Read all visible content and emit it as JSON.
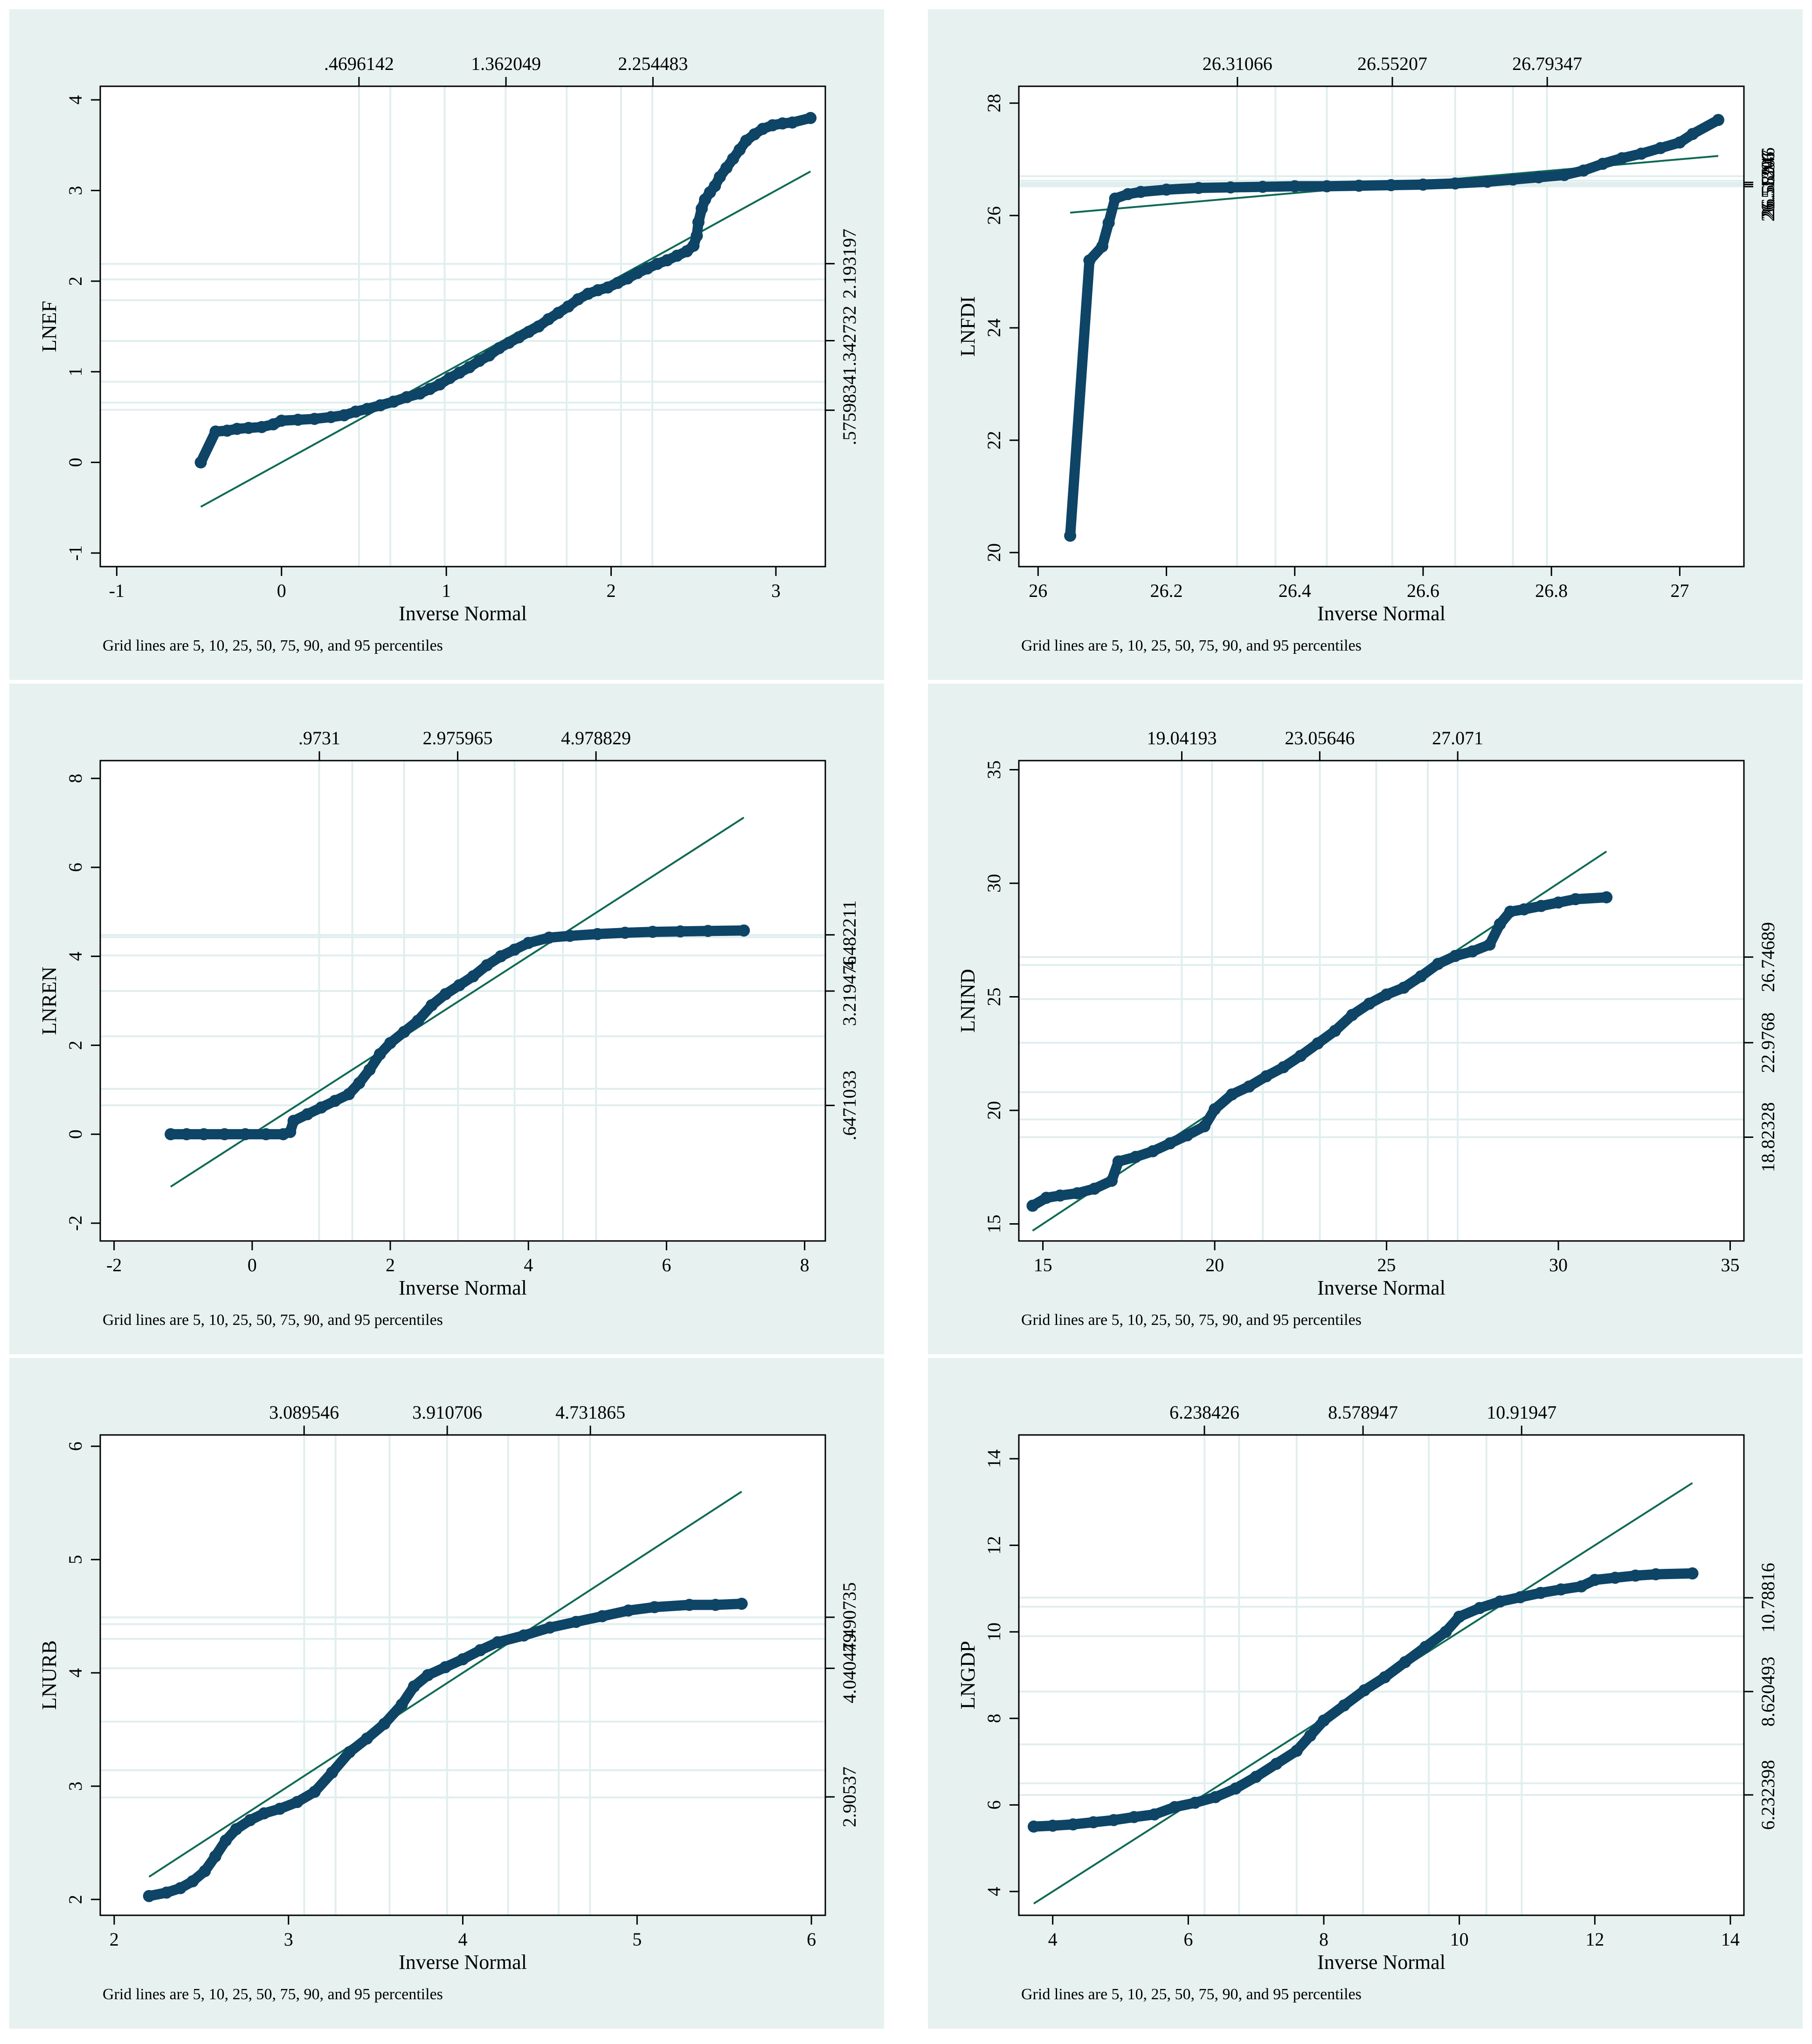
{
  "figure": {
    "panel_background": "#e6f1f0",
    "plot_background": "#ffffff",
    "gridline_color": "#e0eeee",
    "marker_color": "#0e4466",
    "fit_line_color": "#0e6a55"
  },
  "chart_data": [
    {
      "type": "scatter",
      "title": "",
      "xlabel": "Inverse Normal",
      "ylabel": "LNEF",
      "note": "Grid lines are 5, 10, 25, 50, 75, 90, and 95 percentiles",
      "xlim": [
        -1.1,
        3.3
      ],
      "ylim": [
        -1.15,
        4.15
      ],
      "x_ticks": [
        "-1",
        "0",
        "1",
        "2",
        "3"
      ],
      "y_ticks": [
        "-1",
        "0",
        "1",
        "2",
        "3",
        "4"
      ],
      "top_tick_labels": [
        ".4696142",
        "1.362049",
        "2.254483"
      ],
      "right_tick_labels": [
        ".5759834",
        "1.342732",
        "2.193197"
      ],
      "vgrid": [
        0.47,
        0.66,
        0.99,
        1.36,
        1.73,
        2.06,
        2.25
      ],
      "hgrid": [
        0.58,
        0.66,
        0.89,
        1.34,
        1.79,
        2.02,
        2.19
      ],
      "top_ticks": [
        0.47,
        1.362,
        2.254
      ],
      "right_ticks": [
        0.576,
        1.343,
        2.193
      ],
      "fit_line": {
        "x": [
          -0.49,
          3.21
        ],
        "y": [
          -0.49,
          3.21
        ]
      },
      "points": [
        [
          -0.49,
          0.0
        ],
        [
          -0.4,
          0.34
        ],
        [
          -0.33,
          0.35
        ],
        [
          -0.27,
          0.37
        ],
        [
          -0.2,
          0.38
        ],
        [
          -0.12,
          0.39
        ],
        [
          -0.05,
          0.42
        ],
        [
          0.0,
          0.46
        ],
        [
          0.1,
          0.47
        ],
        [
          0.2,
          0.48
        ],
        [
          0.3,
          0.5
        ],
        [
          0.38,
          0.52
        ],
        [
          0.45,
          0.56
        ],
        [
          0.52,
          0.59
        ],
        [
          0.6,
          0.63
        ],
        [
          0.68,
          0.67
        ],
        [
          0.76,
          0.72
        ],
        [
          0.84,
          0.76
        ],
        [
          0.9,
          0.81
        ],
        [
          0.96,
          0.86
        ],
        [
          1.02,
          0.93
        ],
        [
          1.08,
          0.99
        ],
        [
          1.14,
          1.05
        ],
        [
          1.2,
          1.12
        ],
        [
          1.26,
          1.18
        ],
        [
          1.32,
          1.26
        ],
        [
          1.38,
          1.32
        ],
        [
          1.44,
          1.38
        ],
        [
          1.5,
          1.44
        ],
        [
          1.56,
          1.5
        ],
        [
          1.62,
          1.58
        ],
        [
          1.68,
          1.65
        ],
        [
          1.74,
          1.72
        ],
        [
          1.8,
          1.8
        ],
        [
          1.86,
          1.86
        ],
        [
          1.92,
          1.9
        ],
        [
          1.98,
          1.93
        ],
        [
          2.04,
          1.98
        ],
        [
          2.1,
          2.03
        ],
        [
          2.16,
          2.09
        ],
        [
          2.22,
          2.14
        ],
        [
          2.28,
          2.19
        ],
        [
          2.34,
          2.23
        ],
        [
          2.4,
          2.28
        ],
        [
          2.46,
          2.33
        ],
        [
          2.5,
          2.39
        ],
        [
          2.52,
          2.5
        ],
        [
          2.53,
          2.65
        ],
        [
          2.55,
          2.8
        ],
        [
          2.57,
          2.9
        ],
        [
          2.6,
          2.98
        ],
        [
          2.63,
          3.05
        ],
        [
          2.66,
          3.15
        ],
        [
          2.7,
          3.25
        ],
        [
          2.74,
          3.35
        ],
        [
          2.78,
          3.45
        ],
        [
          2.82,
          3.55
        ],
        [
          2.87,
          3.62
        ],
        [
          2.92,
          3.68
        ],
        [
          2.98,
          3.72
        ],
        [
          3.04,
          3.74
        ],
        [
          3.1,
          3.75
        ],
        [
          3.21,
          3.8
        ]
      ]
    },
    {
      "type": "scatter",
      "title": "",
      "xlabel": "Inverse Normal",
      "ylabel": "LNFDI",
      "note": "Grid lines are 5, 10, 25, 50, 75, 90, and 95 percentiles",
      "xlim": [
        25.97,
        27.1
      ],
      "ylim": [
        19.75,
        28.3
      ],
      "x_ticks": [
        "26",
        "26.2",
        "26.4",
        "26.6",
        "26.8",
        "27"
      ],
      "y_ticks": [
        "20",
        "22",
        "24",
        "26",
        "28"
      ],
      "top_tick_labels": [
        "26.31066",
        "26.55207",
        "26.79347"
      ],
      "right_tick_labels": [
        "26.51396",
        "26.55207",
        "26.58946"
      ],
      "vgrid": [
        26.31,
        26.37,
        26.45,
        26.552,
        26.65,
        26.74,
        26.793
      ],
      "hgrid": [
        26.52,
        26.54,
        26.55,
        26.56,
        26.58,
        26.62,
        26.7
      ],
      "top_ticks": [
        26.31066,
        26.55207,
        26.79347
      ],
      "right_ticks": [
        26.514,
        26.552,
        26.589
      ],
      "fit_line": {
        "x": [
          26.05,
          27.06
        ],
        "y": [
          26.05,
          27.06
        ]
      },
      "points": [
        [
          26.05,
          20.3
        ],
        [
          26.08,
          25.2
        ],
        [
          26.1,
          25.45
        ],
        [
          26.11,
          25.87
        ],
        [
          26.12,
          26.3
        ],
        [
          26.14,
          26.38
        ],
        [
          26.16,
          26.42
        ],
        [
          26.2,
          26.46
        ],
        [
          26.25,
          26.49
        ],
        [
          26.3,
          26.5
        ],
        [
          26.35,
          26.51
        ],
        [
          26.4,
          26.52
        ],
        [
          26.45,
          26.52
        ],
        [
          26.5,
          26.53
        ],
        [
          26.55,
          26.54
        ],
        [
          26.6,
          26.55
        ],
        [
          26.65,
          26.57
        ],
        [
          26.7,
          26.6
        ],
        [
          26.74,
          26.64
        ],
        [
          26.78,
          26.68
        ],
        [
          26.82,
          26.72
        ],
        [
          26.85,
          26.8
        ],
        [
          26.88,
          26.92
        ],
        [
          26.91,
          27.02
        ],
        [
          26.94,
          27.1
        ],
        [
          26.97,
          27.2
        ],
        [
          27.0,
          27.3
        ],
        [
          27.02,
          27.45
        ],
        [
          27.06,
          27.7
        ]
      ]
    },
    {
      "type": "scatter",
      "title": "",
      "xlabel": "Inverse Normal",
      "ylabel": "LNREN",
      "note": "Grid lines are 5, 10, 25, 50, 75, 90, and 95 percentiles",
      "xlim": [
        -2.2,
        8.3
      ],
      "ylim": [
        -2.4,
        8.4
      ],
      "x_ticks": [
        "-2",
        "0",
        "2",
        "4",
        "6",
        "8"
      ],
      "y_ticks": [
        "-2",
        "0",
        "2",
        "4",
        "6",
        "8"
      ],
      "top_tick_labels": [
        ".9731",
        "2.975965",
        "4.978829"
      ],
      "right_tick_labels": [
        ".6471033",
        "3.219476",
        "4.482211"
      ],
      "vgrid": [
        0.97,
        1.45,
        2.2,
        2.98,
        3.8,
        4.5,
        4.98
      ],
      "hgrid": [
        0.65,
        1.02,
        2.2,
        3.22,
        4.02,
        4.43,
        4.48
      ],
      "top_ticks": [
        0.9731,
        2.975965,
        4.978829
      ],
      "right_ticks": [
        0.647,
        3.219,
        4.482
      ],
      "fit_line": {
        "x": [
          -1.18,
          7.12
        ],
        "y": [
          -1.18,
          7.12
        ]
      },
      "points": [
        [
          -1.18,
          0.0
        ],
        [
          -0.95,
          0.0
        ],
        [
          -0.7,
          0.0
        ],
        [
          -0.4,
          0.0
        ],
        [
          -0.1,
          0.0
        ],
        [
          0.2,
          0.0
        ],
        [
          0.45,
          0.0
        ],
        [
          0.55,
          0.05
        ],
        [
          0.6,
          0.3
        ],
        [
          0.8,
          0.45
        ],
        [
          1.0,
          0.6
        ],
        [
          1.2,
          0.75
        ],
        [
          1.4,
          0.9
        ],
        [
          1.55,
          1.15
        ],
        [
          1.7,
          1.45
        ],
        [
          1.85,
          1.8
        ],
        [
          2.0,
          2.05
        ],
        [
          2.2,
          2.3
        ],
        [
          2.4,
          2.55
        ],
        [
          2.6,
          2.9
        ],
        [
          2.8,
          3.15
        ],
        [
          3.0,
          3.35
        ],
        [
          3.2,
          3.55
        ],
        [
          3.4,
          3.8
        ],
        [
          3.6,
          4.0
        ],
        [
          3.8,
          4.15
        ],
        [
          4.0,
          4.3
        ],
        [
          4.3,
          4.42
        ],
        [
          4.6,
          4.46
        ],
        [
          5.0,
          4.5
        ],
        [
          5.4,
          4.53
        ],
        [
          5.8,
          4.55
        ],
        [
          6.2,
          4.56
        ],
        [
          6.6,
          4.57
        ],
        [
          7.12,
          4.58
        ]
      ]
    },
    {
      "type": "scatter",
      "title": "",
      "xlabel": "Inverse Normal",
      "ylabel": "LNIND",
      "note": "Grid lines are 5, 10, 25, 50, 75, 90, and 95 percentiles",
      "xlim": [
        14.3,
        35.4
      ],
      "ylim": [
        14.25,
        35.4
      ],
      "x_ticks": [
        "15",
        "20",
        "25",
        "30",
        "35"
      ],
      "y_ticks": [
        "15",
        "20",
        "25",
        "30",
        "35"
      ],
      "top_tick_labels": [
        "19.04193",
        "23.05646",
        "27.071"
      ],
      "right_tick_labels": [
        "18.82328",
        "22.9768",
        "26.74689"
      ],
      "vgrid": [
        19.04,
        19.92,
        21.4,
        23.06,
        24.7,
        26.2,
        27.07
      ],
      "hgrid": [
        18.82,
        19.6,
        20.8,
        22.98,
        24.9,
        26.4,
        26.75
      ],
      "top_ticks": [
        19.04193,
        23.05646,
        27.071
      ],
      "right_ticks": [
        18.82,
        22.98,
        26.75
      ],
      "fit_line": {
        "x": [
          14.7,
          31.4
        ],
        "y": [
          14.7,
          31.4
        ]
      },
      "points": [
        [
          14.7,
          15.8
        ],
        [
          15.1,
          16.15
        ],
        [
          15.5,
          16.25
        ],
        [
          16.0,
          16.35
        ],
        [
          16.5,
          16.55
        ],
        [
          17.0,
          16.9
        ],
        [
          17.2,
          17.75
        ],
        [
          17.7,
          17.95
        ],
        [
          18.2,
          18.2
        ],
        [
          18.7,
          18.55
        ],
        [
          19.2,
          18.9
        ],
        [
          19.7,
          19.3
        ],
        [
          20.0,
          20.05
        ],
        [
          20.5,
          20.7
        ],
        [
          21.0,
          21.05
        ],
        [
          21.5,
          21.5
        ],
        [
          22.0,
          21.9
        ],
        [
          22.5,
          22.4
        ],
        [
          23.0,
          22.95
        ],
        [
          23.5,
          23.5
        ],
        [
          24.0,
          24.2
        ],
        [
          24.5,
          24.7
        ],
        [
          25.0,
          25.1
        ],
        [
          25.5,
          25.4
        ],
        [
          26.0,
          25.9
        ],
        [
          26.5,
          26.45
        ],
        [
          27.0,
          26.8
        ],
        [
          27.5,
          27.0
        ],
        [
          28.0,
          27.3
        ],
        [
          28.3,
          28.2
        ],
        [
          28.6,
          28.75
        ],
        [
          29.0,
          28.85
        ],
        [
          29.5,
          29.0
        ],
        [
          30.0,
          29.15
        ],
        [
          30.5,
          29.3
        ],
        [
          31.4,
          29.38
        ]
      ]
    },
    {
      "type": "scatter",
      "title": "",
      "xlabel": "Inverse Normal",
      "ylabel": "LNURB",
      "note": "Grid lines are 5, 10, 25, 50, 75, 90, and 95 percentiles",
      "xlim": [
        1.92,
        6.08
      ],
      "ylim": [
        1.86,
        6.1
      ],
      "x_ticks": [
        "2",
        "3",
        "4",
        "5",
        "6"
      ],
      "y_ticks": [
        "2",
        "3",
        "4",
        "5",
        "6"
      ],
      "top_tick_labels": [
        "3.089546",
        "3.910706",
        "4.731865"
      ],
      "right_tick_labels": [
        "2.90537",
        "4.040479",
        "4.490735"
      ],
      "vgrid": [
        3.09,
        3.27,
        3.58,
        3.91,
        4.26,
        4.55,
        4.73
      ],
      "hgrid": [
        2.9,
        3.14,
        3.57,
        4.04,
        4.3,
        4.43,
        4.49
      ],
      "top_ticks": [
        3.089546,
        3.910706,
        4.731865
      ],
      "right_ticks": [
        2.905,
        4.04,
        4.491
      ],
      "fit_line": {
        "x": [
          2.2,
          5.6
        ],
        "y": [
          2.2,
          5.6
        ]
      },
      "points": [
        [
          2.2,
          2.03
        ],
        [
          2.3,
          2.06
        ],
        [
          2.38,
          2.1
        ],
        [
          2.45,
          2.16
        ],
        [
          2.52,
          2.25
        ],
        [
          2.58,
          2.38
        ],
        [
          2.64,
          2.52
        ],
        [
          2.7,
          2.62
        ],
        [
          2.78,
          2.7
        ],
        [
          2.86,
          2.76
        ],
        [
          2.95,
          2.8
        ],
        [
          3.05,
          2.86
        ],
        [
          3.15,
          2.95
        ],
        [
          3.25,
          3.12
        ],
        [
          3.35,
          3.3
        ],
        [
          3.45,
          3.42
        ],
        [
          3.55,
          3.55
        ],
        [
          3.65,
          3.72
        ],
        [
          3.72,
          3.88
        ],
        [
          3.8,
          3.98
        ],
        [
          3.9,
          4.05
        ],
        [
          4.0,
          4.12
        ],
        [
          4.1,
          4.2
        ],
        [
          4.2,
          4.27
        ],
        [
          4.35,
          4.33
        ],
        [
          4.5,
          4.4
        ],
        [
          4.65,
          4.45
        ],
        [
          4.8,
          4.5
        ],
        [
          4.95,
          4.55
        ],
        [
          5.1,
          4.58
        ],
        [
          5.3,
          4.6
        ],
        [
          5.45,
          4.6
        ],
        [
          5.6,
          4.61
        ]
      ]
    },
    {
      "type": "scatter",
      "title": "",
      "xlabel": "Inverse Normal",
      "ylabel": "LNGDP",
      "note": "Grid lines are 5, 10, 25, 50, 75, 90, and 95 percentiles",
      "xlim": [
        3.5,
        14.2
      ],
      "ylim": [
        3.45,
        14.55
      ],
      "x_ticks": [
        "4",
        "6",
        "8",
        "10",
        "12",
        "14"
      ],
      "y_ticks": [
        "4",
        "6",
        "8",
        "10",
        "12",
        "14"
      ],
      "top_tick_labels": [
        "6.238426",
        "8.578947",
        "10.91947"
      ],
      "right_tick_labels": [
        "6.232398",
        "8.620493",
        "10.78816"
      ],
      "vgrid": [
        6.24,
        6.75,
        7.6,
        8.58,
        9.55,
        10.4,
        10.92
      ],
      "hgrid": [
        6.23,
        6.5,
        7.4,
        8.62,
        9.9,
        10.58,
        10.79
      ],
      "top_ticks": [
        6.238426,
        8.578947,
        10.91947
      ],
      "right_ticks": [
        6.232,
        8.62,
        10.788
      ],
      "fit_line": {
        "x": [
          3.72,
          13.44
        ],
        "y": [
          3.72,
          13.44
        ]
      },
      "points": [
        [
          3.72,
          5.5
        ],
        [
          4.0,
          5.52
        ],
        [
          4.3,
          5.55
        ],
        [
          4.6,
          5.6
        ],
        [
          4.9,
          5.65
        ],
        [
          5.2,
          5.72
        ],
        [
          5.5,
          5.78
        ],
        [
          5.8,
          5.95
        ],
        [
          6.1,
          6.05
        ],
        [
          6.4,
          6.18
        ],
        [
          6.7,
          6.38
        ],
        [
          7.0,
          6.65
        ],
        [
          7.3,
          6.95
        ],
        [
          7.6,
          7.25
        ],
        [
          7.8,
          7.6
        ],
        [
          8.0,
          7.95
        ],
        [
          8.3,
          8.3
        ],
        [
          8.6,
          8.65
        ],
        [
          8.9,
          8.95
        ],
        [
          9.2,
          9.3
        ],
        [
          9.5,
          9.65
        ],
        [
          9.8,
          10.0
        ],
        [
          10.0,
          10.35
        ],
        [
          10.3,
          10.55
        ],
        [
          10.6,
          10.7
        ],
        [
          10.9,
          10.8
        ],
        [
          11.2,
          10.9
        ],
        [
          11.5,
          10.98
        ],
        [
          11.8,
          11.05
        ],
        [
          12.0,
          11.2
        ],
        [
          12.3,
          11.25
        ],
        [
          12.6,
          11.3
        ],
        [
          12.9,
          11.33
        ],
        [
          13.44,
          11.35
        ]
      ]
    }
  ]
}
